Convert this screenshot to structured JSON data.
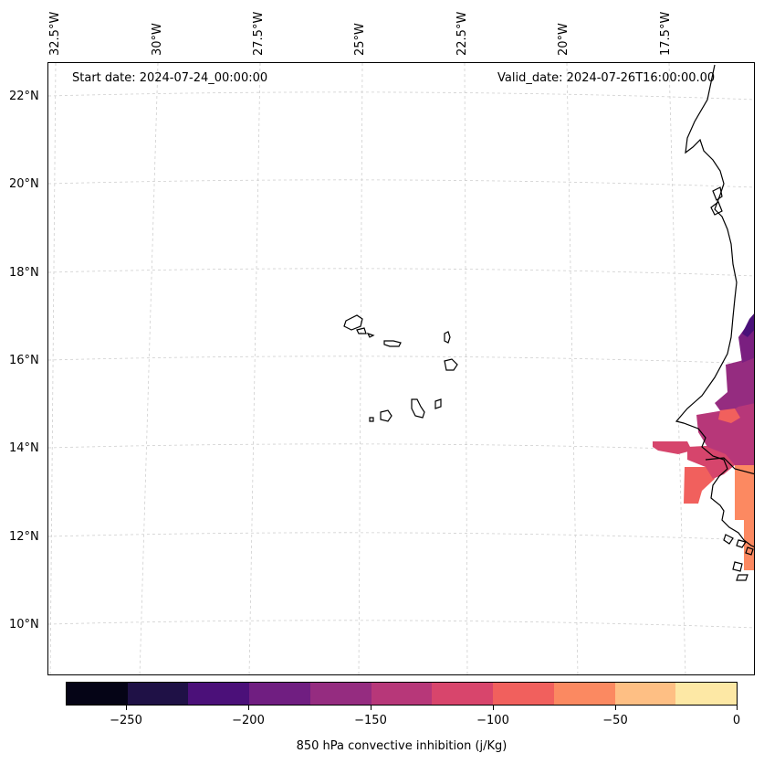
{
  "header": {
    "start_date": "Start date: 2024-07-24_00:00:00",
    "valid_date": "Valid_date: 2024-07-26T16:00:00.00"
  },
  "map": {
    "lon_labels": [
      "32.5°W",
      "30°W",
      "27.5°W",
      "25°W",
      "22.5°W",
      "20°W",
      "17.5°W"
    ],
    "lat_labels": [
      "22°N",
      "20°N",
      "18°N",
      "16°N",
      "14°N",
      "12°N",
      "10°N"
    ],
    "field": "850 hPa convective inhibition",
    "field_colors": {
      "dark_purple": "#4a1079",
      "purple": "#7a1f80",
      "magenta": "#952c80",
      "pink": "#b73779",
      "rose": "#d6456c",
      "coral": "#f1605d",
      "salmon": "#fc8961"
    }
  },
  "colorbar": {
    "label": "850 hPa convective inhibition (j/Kg)",
    "colors": [
      "#050416",
      "#1f1146",
      "#4b1079",
      "#701e81",
      "#952c80",
      "#b73779",
      "#d8456c",
      "#f1605d",
      "#fb8961",
      "#febf84",
      "#fde8a5"
    ],
    "ticks": [
      "−250",
      "−200",
      "−150",
      "−100",
      "−50",
      "0"
    ]
  }
}
